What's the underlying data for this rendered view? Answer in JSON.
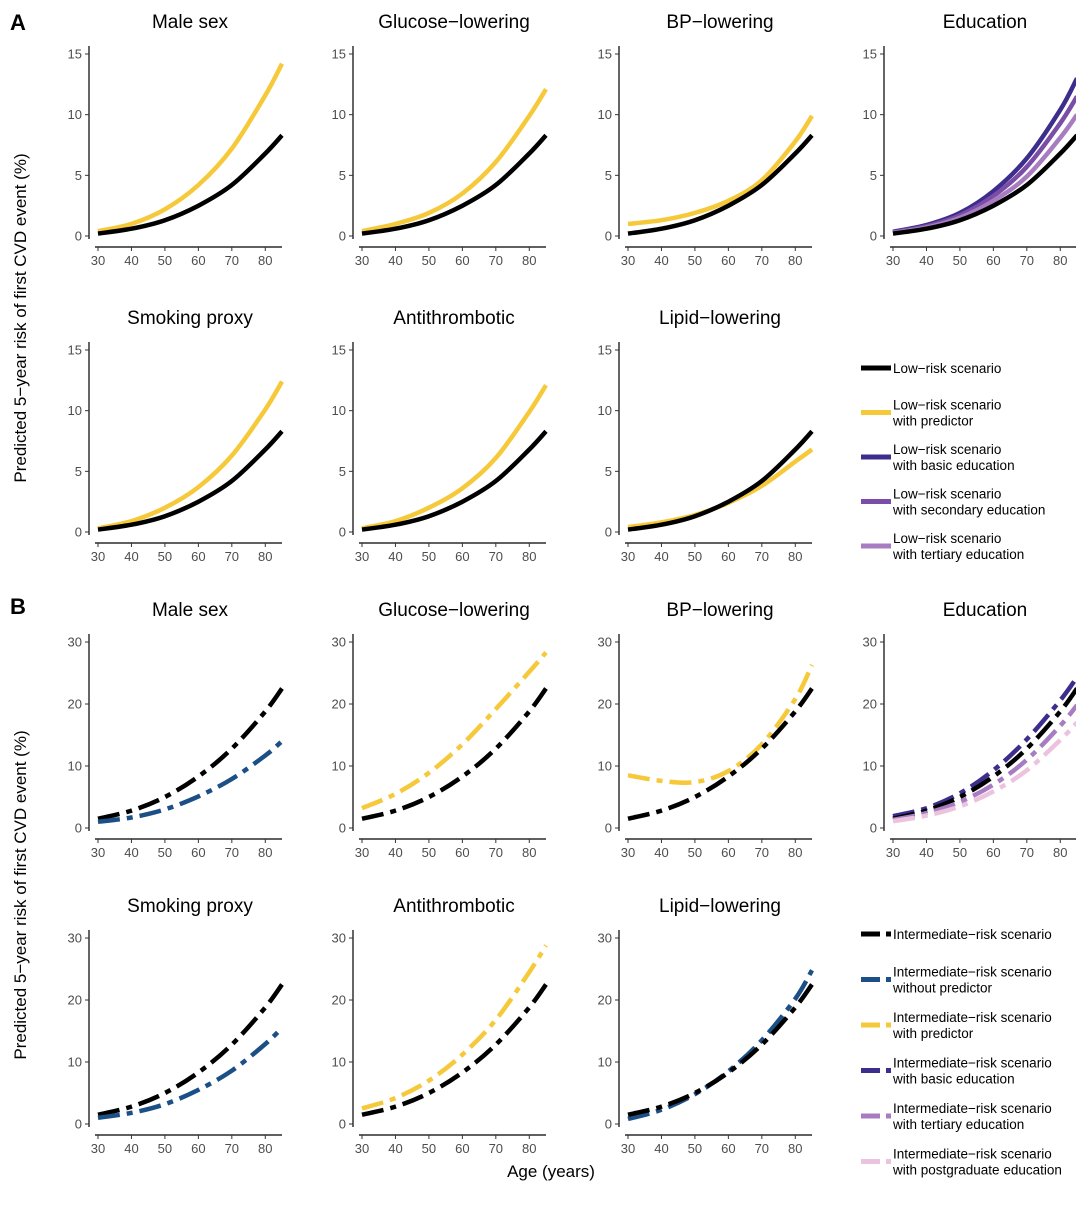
{
  "figure": {
    "panel_labels": [
      "A",
      "B"
    ],
    "ylabel": "Predicted 5−year risk of first CVD event (%)",
    "xlabel": "Age (years)"
  },
  "colors": {
    "black": "#000000",
    "yellow": "#F6C93B",
    "blue": "#1B4F85",
    "basic": "#3D2D8C",
    "secondary": "#7A4DA6",
    "tertiary": "#A77CC0",
    "postgrad": "#EBC3DE"
  },
  "legend_A": [
    {
      "text": [
        "Low−risk scenario"
      ],
      "color": "black",
      "dashed": false
    },
    {
      "text": [
        "Low−risk scenario",
        "with predictor"
      ],
      "color": "yellow",
      "dashed": false
    },
    {
      "text": [
        "Low−risk scenario",
        "with basic education"
      ],
      "color": "basic",
      "dashed": false
    },
    {
      "text": [
        "Low−risk scenario",
        "with secondary education"
      ],
      "color": "secondary",
      "dashed": false
    },
    {
      "text": [
        "Low−risk scenario",
        "with tertiary education"
      ],
      "color": "tertiary",
      "dashed": false
    }
  ],
  "legend_B": [
    {
      "text": [
        "Intermediate−risk scenario"
      ],
      "color": "black",
      "dashed": true
    },
    {
      "text": [
        "Intermediate−risk scenario",
        "without predictor"
      ],
      "color": "blue",
      "dashed": true
    },
    {
      "text": [
        "Intermediate−risk scenario",
        "with predictor"
      ],
      "color": "yellow",
      "dashed": true
    },
    {
      "text": [
        "Intermediate−risk scenario",
        "with basic education"
      ],
      "color": "basic",
      "dashed": true
    },
    {
      "text": [
        "Intermediate−risk scenario",
        "with tertiary education"
      ],
      "color": "tertiary",
      "dashed": true
    },
    {
      "text": [
        "Intermediate−risk scenario",
        "with postgraduate education"
      ],
      "color": "postgrad",
      "dashed": true
    }
  ],
  "chart_data": [
    {
      "panel": "A",
      "title": "Male sex",
      "type": "line",
      "xlim": [
        30,
        85
      ],
      "ylim": [
        0,
        15
      ],
      "xticks": [
        30,
        40,
        50,
        60,
        70,
        80
      ],
      "yticks": [
        0,
        5,
        10,
        15
      ],
      "x": [
        30,
        40,
        50,
        60,
        70,
        80,
        85
      ],
      "series": [
        {
          "color": "yellow",
          "dashed": false,
          "values": [
            0.4,
            1.0,
            2.2,
            4.2,
            7.2,
            11.6,
            14.2
          ]
        },
        {
          "color": "black",
          "dashed": false,
          "values": [
            0.2,
            0.6,
            1.3,
            2.5,
            4.2,
            6.8,
            8.3
          ]
        }
      ]
    },
    {
      "panel": "A",
      "title": "Glucose−lowering",
      "type": "line",
      "xlim": [
        30,
        85
      ],
      "ylim": [
        0,
        15
      ],
      "xticks": [
        30,
        40,
        50,
        60,
        70,
        80
      ],
      "yticks": [
        0,
        5,
        10,
        15
      ],
      "x": [
        30,
        40,
        50,
        60,
        70,
        80,
        85
      ],
      "series": [
        {
          "color": "yellow",
          "dashed": false,
          "values": [
            0.4,
            1.0,
            1.9,
            3.5,
            6.1,
            9.9,
            12.1
          ]
        },
        {
          "color": "black",
          "dashed": false,
          "values": [
            0.2,
            0.6,
            1.3,
            2.5,
            4.2,
            6.8,
            8.3
          ]
        }
      ]
    },
    {
      "panel": "A",
      "title": "BP−lowering",
      "type": "line",
      "xlim": [
        30,
        85
      ],
      "ylim": [
        0,
        15
      ],
      "xticks": [
        30,
        40,
        50,
        60,
        70,
        80
      ],
      "yticks": [
        0,
        5,
        10,
        15
      ],
      "x": [
        30,
        40,
        50,
        60,
        70,
        80,
        85
      ],
      "series": [
        {
          "color": "yellow",
          "dashed": false,
          "values": [
            1.0,
            1.3,
            1.9,
            2.9,
            4.6,
            7.8,
            9.9
          ]
        },
        {
          "color": "black",
          "dashed": false,
          "values": [
            0.2,
            0.6,
            1.3,
            2.5,
            4.2,
            6.8,
            8.3
          ]
        }
      ]
    },
    {
      "panel": "A",
      "title": "Education",
      "type": "line",
      "xlim": [
        30,
        85
      ],
      "ylim": [
        0,
        15
      ],
      "xticks": [
        30,
        40,
        50,
        60,
        70,
        80
      ],
      "yticks": [
        0,
        5,
        10,
        15
      ],
      "x": [
        30,
        40,
        50,
        60,
        70,
        80,
        85
      ],
      "series": [
        {
          "color": "basic",
          "dashed": false,
          "values": [
            0.35,
            0.9,
            1.9,
            3.7,
            6.4,
            10.4,
            13.0
          ]
        },
        {
          "color": "secondary",
          "dashed": false,
          "values": [
            0.3,
            0.8,
            1.7,
            3.3,
            5.7,
            9.3,
            11.5
          ]
        },
        {
          "color": "tertiary",
          "dashed": false,
          "values": [
            0.25,
            0.7,
            1.5,
            2.9,
            4.9,
            8.1,
            10.0
          ]
        },
        {
          "color": "black",
          "dashed": false,
          "values": [
            0.2,
            0.6,
            1.3,
            2.5,
            4.2,
            6.8,
            8.3
          ]
        }
      ]
    },
    {
      "panel": "A",
      "title": "Smoking proxy",
      "type": "line",
      "xlim": [
        30,
        85
      ],
      "ylim": [
        0,
        15
      ],
      "xticks": [
        30,
        40,
        50,
        60,
        70,
        80
      ],
      "yticks": [
        0,
        5,
        10,
        15
      ],
      "x": [
        30,
        40,
        50,
        60,
        70,
        80,
        85
      ],
      "series": [
        {
          "color": "yellow",
          "dashed": false,
          "values": [
            0.3,
            0.9,
            2.0,
            3.7,
            6.3,
            10.1,
            12.4
          ]
        },
        {
          "color": "black",
          "dashed": false,
          "values": [
            0.2,
            0.6,
            1.3,
            2.5,
            4.2,
            6.8,
            8.3
          ]
        }
      ]
    },
    {
      "panel": "A",
      "title": "Antithrombotic",
      "type": "line",
      "xlim": [
        30,
        85
      ],
      "ylim": [
        0,
        15
      ],
      "xticks": [
        30,
        40,
        50,
        60,
        70,
        80
      ],
      "yticks": [
        0,
        5,
        10,
        15
      ],
      "x": [
        30,
        40,
        50,
        60,
        70,
        80,
        85
      ],
      "series": [
        {
          "color": "yellow",
          "dashed": false,
          "values": [
            0.3,
            0.9,
            2.0,
            3.6,
            6.1,
            9.9,
            12.1
          ]
        },
        {
          "color": "black",
          "dashed": false,
          "values": [
            0.2,
            0.6,
            1.3,
            2.5,
            4.2,
            6.8,
            8.3
          ]
        }
      ]
    },
    {
      "panel": "A",
      "title": "Lipid−lowering",
      "type": "line",
      "xlim": [
        30,
        85
      ],
      "ylim": [
        0,
        15
      ],
      "xticks": [
        30,
        40,
        50,
        60,
        70,
        80
      ],
      "yticks": [
        0,
        5,
        10,
        15
      ],
      "x": [
        30,
        40,
        50,
        60,
        70,
        80,
        85
      ],
      "series": [
        {
          "color": "yellow",
          "dashed": false,
          "values": [
            0.4,
            0.8,
            1.4,
            2.4,
            3.8,
            5.8,
            6.8
          ]
        },
        {
          "color": "black",
          "dashed": false,
          "values": [
            0.2,
            0.6,
            1.3,
            2.5,
            4.2,
            6.8,
            8.3
          ]
        }
      ]
    },
    {
      "panel": "B",
      "title": "Male sex",
      "type": "line",
      "xlim": [
        30,
        85
      ],
      "ylim": [
        0,
        30
      ],
      "xticks": [
        30,
        40,
        50,
        60,
        70,
        80
      ],
      "yticks": [
        0,
        10,
        20,
        30
      ],
      "x": [
        30,
        40,
        50,
        60,
        70,
        80,
        85
      ],
      "series": [
        {
          "color": "black",
          "dashed": true,
          "values": [
            1.5,
            2.8,
            5.0,
            8.3,
            12.8,
            18.8,
            22.5
          ]
        },
        {
          "color": "blue",
          "dashed": true,
          "values": [
            1.0,
            1.7,
            3.0,
            5.1,
            7.9,
            11.7,
            14.0
          ]
        }
      ]
    },
    {
      "panel": "B",
      "title": "Glucose−lowering",
      "type": "line",
      "xlim": [
        30,
        85
      ],
      "ylim": [
        0,
        30
      ],
      "xticks": [
        30,
        40,
        50,
        60,
        70,
        80
      ],
      "yticks": [
        0,
        10,
        20,
        30
      ],
      "x": [
        30,
        40,
        50,
        60,
        70,
        80,
        85
      ],
      "series": [
        {
          "color": "yellow",
          "dashed": true,
          "values": [
            3.2,
            5.5,
            8.9,
            13.5,
            19.2,
            25.2,
            28.3
          ]
        },
        {
          "color": "black",
          "dashed": true,
          "values": [
            1.5,
            2.8,
            5.0,
            8.3,
            12.8,
            18.8,
            22.5
          ]
        }
      ]
    },
    {
      "panel": "B",
      "title": "BP−lowering",
      "type": "line",
      "xlim": [
        30,
        85
      ],
      "ylim": [
        0,
        30
      ],
      "xticks": [
        30,
        40,
        50,
        60,
        70,
        80
      ],
      "yticks": [
        0,
        10,
        20,
        30
      ],
      "x": [
        30,
        40,
        50,
        60,
        70,
        80,
        85
      ],
      "series": [
        {
          "color": "yellow",
          "dashed": true,
          "values": [
            8.5,
            7.6,
            7.4,
            9.2,
            13.5,
            20.8,
            26.3
          ]
        },
        {
          "color": "black",
          "dashed": true,
          "values": [
            1.5,
            2.8,
            5.0,
            8.3,
            12.8,
            18.8,
            22.5
          ]
        }
      ]
    },
    {
      "panel": "B",
      "title": "Education",
      "type": "line",
      "xlim": [
        30,
        85
      ],
      "ylim": [
        0,
        30
      ],
      "xticks": [
        30,
        40,
        50,
        60,
        70,
        80
      ],
      "yticks": [
        0,
        10,
        20,
        30
      ],
      "x": [
        30,
        40,
        50,
        60,
        70,
        80,
        85
      ],
      "series": [
        {
          "color": "basic",
          "dashed": true,
          "values": [
            1.9,
            3.2,
            5.6,
            9.3,
            14.3,
            20.6,
            24.3
          ]
        },
        {
          "color": "black",
          "dashed": true,
          "values": [
            1.5,
            2.8,
            5.0,
            8.3,
            12.8,
            18.8,
            22.5
          ]
        },
        {
          "color": "tertiary",
          "dashed": true,
          "values": [
            1.3,
            2.4,
            4.2,
            7.0,
            11.0,
            16.5,
            19.8
          ]
        },
        {
          "color": "postgrad",
          "dashed": true,
          "values": [
            1.1,
            2.0,
            3.5,
            5.9,
            9.3,
            14.2,
            17.0
          ]
        }
      ]
    },
    {
      "panel": "B",
      "title": "Smoking proxy",
      "type": "line",
      "xlim": [
        30,
        85
      ],
      "ylim": [
        0,
        30
      ],
      "xticks": [
        30,
        40,
        50,
        60,
        70,
        80
      ],
      "yticks": [
        0,
        10,
        20,
        30
      ],
      "x": [
        30,
        40,
        50,
        60,
        70,
        80,
        85
      ],
      "series": [
        {
          "color": "black",
          "dashed": true,
          "values": [
            1.5,
            2.8,
            5.0,
            8.3,
            12.8,
            18.8,
            22.5
          ]
        },
        {
          "color": "blue",
          "dashed": true,
          "values": [
            1.0,
            1.8,
            3.2,
            5.5,
            8.6,
            12.9,
            15.5
          ]
        }
      ]
    },
    {
      "panel": "B",
      "title": "Antithrombotic",
      "type": "line",
      "xlim": [
        30,
        85
      ],
      "ylim": [
        0,
        30
      ],
      "xticks": [
        30,
        40,
        50,
        60,
        70,
        80
      ],
      "yticks": [
        0,
        10,
        20,
        30
      ],
      "x": [
        30,
        40,
        50,
        60,
        70,
        80,
        85
      ],
      "series": [
        {
          "color": "yellow",
          "dashed": true,
          "values": [
            2.5,
            4.2,
            7.0,
            11.2,
            16.8,
            24.5,
            28.8
          ]
        },
        {
          "color": "black",
          "dashed": true,
          "values": [
            1.5,
            2.8,
            5.0,
            8.3,
            12.8,
            18.8,
            22.5
          ]
        }
      ]
    },
    {
      "panel": "B",
      "title": "Lipid−lowering",
      "type": "line",
      "xlim": [
        30,
        85
      ],
      "ylim": [
        0,
        30
      ],
      "xticks": [
        30,
        40,
        50,
        60,
        70,
        80
      ],
      "yticks": [
        0,
        10,
        20,
        30
      ],
      "x": [
        30,
        40,
        50,
        60,
        70,
        80,
        85
      ],
      "series": [
        {
          "color": "blue",
          "dashed": true,
          "values": [
            0.8,
            2.3,
            4.8,
            8.5,
            13.5,
            20.2,
            24.8
          ]
        },
        {
          "color": "black",
          "dashed": true,
          "values": [
            1.5,
            2.8,
            5.0,
            8.3,
            12.8,
            18.8,
            22.5
          ]
        }
      ]
    }
  ]
}
